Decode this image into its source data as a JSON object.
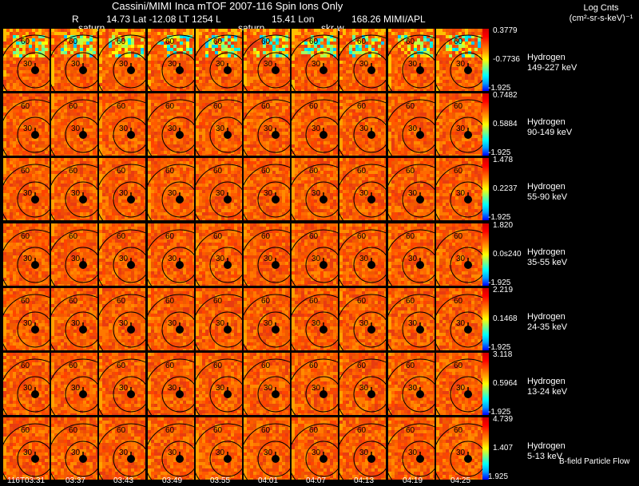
{
  "header": {
    "title": "Cassini/MIMI Inca mTOF  2007-116   Spin    Ions Only",
    "r_label": "R",
    "lat_lt": "14.73 Lat -12.08 LT 1254 L",
    "lon": "15.41 Lon",
    "mimi": "168.26  MIMI/APL",
    "overlay_saturn_1": "saturn",
    "overlay_saturn_2": "saturn",
    "overlay_skr": "skr-w",
    "units_line1": "Log Cnts",
    "units_line2": "(cm²-sr-s-keV)⁻¹"
  },
  "footer": {
    "legend": "B-field Particle Flow"
  },
  "chart_data": {
    "type": "heatmap",
    "title": "Cassini/MIMI Inca mTOF  2007-116   Spin    Ions Only",
    "time_labels": [
      "116T03:31",
      "03:37",
      "03:43",
      "03:49",
      "03:55",
      "04:01",
      "04:07",
      "04:13",
      "04:19",
      "04:25"
    ],
    "contour_labels": [
      "60",
      "30"
    ],
    "rows": [
      {
        "species": "Hydrogen",
        "energy": "149-227 keV",
        "max": "0.3779",
        "mid": "-0.7736",
        "min": "-1.925"
      },
      {
        "species": "Hydrogen",
        "energy": "90-149 keV",
        "max": "0.7482",
        "mid": "0.5884",
        "min": "-1.925"
      },
      {
        "species": "Hydrogen",
        "energy": "55-90 keV",
        "max": "1.478",
        "mid": "0.2237",
        "min": "-1.925"
      },
      {
        "species": "Hydrogen",
        "energy": "35-55 keV",
        "max": "1.820",
        "mid": "0.0s240",
        "min": "-1.925"
      },
      {
        "species": "Hydrogen",
        "energy": "24-35 keV",
        "max": "2.219",
        "mid": "0.1468",
        "min": "-1.925"
      },
      {
        "species": "Hydrogen",
        "energy": "13-24 keV",
        "max": "3.118",
        "mid": "0.5964",
        "min": "-1.925"
      },
      {
        "species": "Hydrogen",
        "energy": "5-13 keV",
        "max": "4.739",
        "mid": "1.407",
        "min": "1.925"
      }
    ],
    "colorscale": [
      "#0000ff",
      "#00a0ff",
      "#00ffff",
      "#80ff80",
      "#ffff00",
      "#ffa000",
      "#ff5000",
      "#ff0000",
      "#d00000"
    ]
  }
}
